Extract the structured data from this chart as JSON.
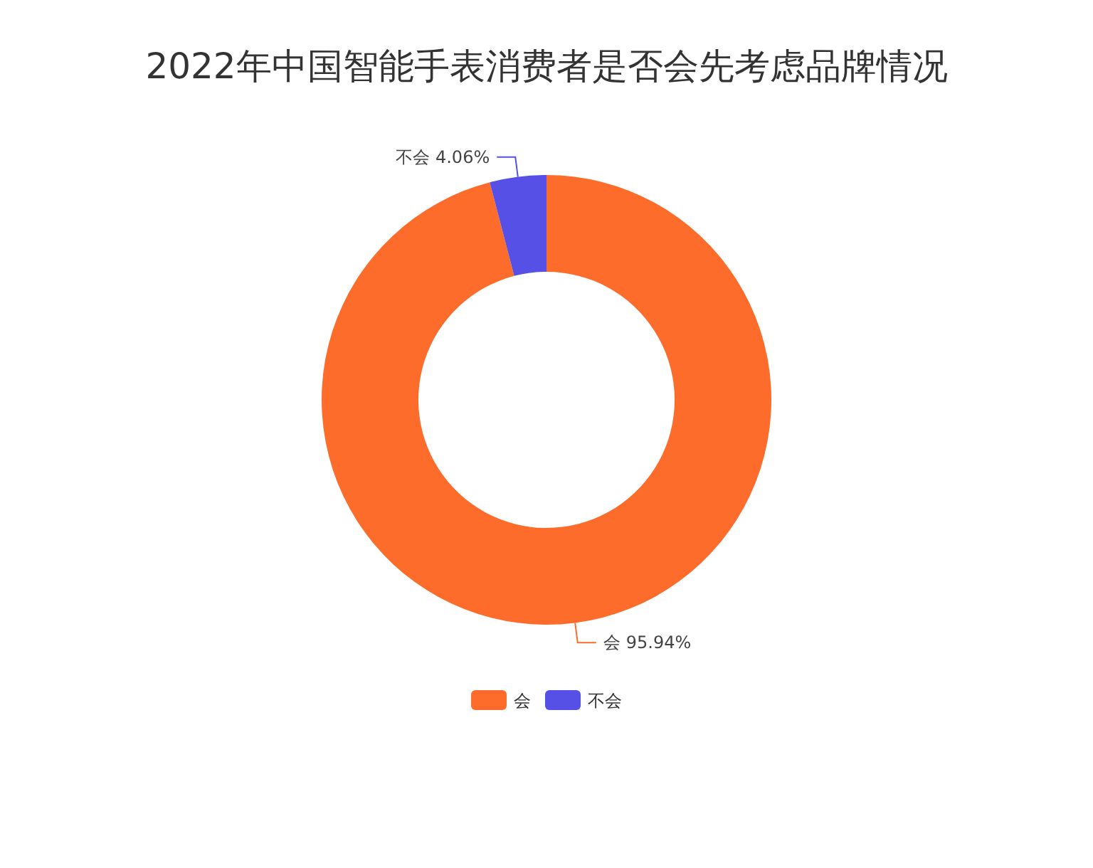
{
  "chart_data": {
    "type": "donut",
    "title": "2022年中国智能手表消费者是否会先考虑品牌情况",
    "categories": [
      "会",
      "不会"
    ],
    "values": [
      95.94,
      4.06
    ],
    "value_labels": [
      "95.94%",
      "4.06%"
    ],
    "colors": [
      "#fe6c2c",
      "#5650e6"
    ],
    "legend": "bottom"
  }
}
